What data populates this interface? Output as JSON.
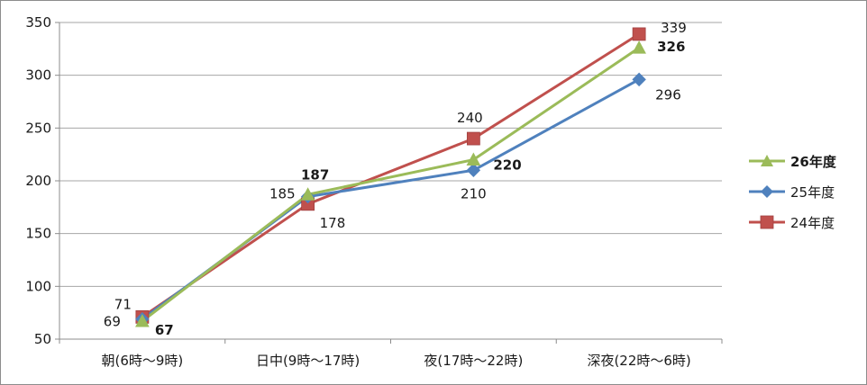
{
  "chart_data": {
    "type": "line",
    "categories": [
      "朝(6時～9時)",
      "日中(9時～17時)",
      "夜(17時～22時)",
      "深夜(22時～6時)"
    ],
    "ylim": [
      50,
      350
    ],
    "yticks": [
      50,
      100,
      150,
      200,
      250,
      300,
      350
    ],
    "grid": true,
    "legend_position": "right",
    "series": [
      {
        "name": "26年度",
        "values": [
          67,
          187,
          220,
          326
        ],
        "color": "#9bbb59",
        "marker": "triangle",
        "bold_labels": true
      },
      {
        "name": "25年度",
        "values": [
          69,
          185,
          210,
          296
        ],
        "color": "#4f81bd",
        "marker": "diamond",
        "bold_labels": false
      },
      {
        "name": "24年度",
        "values": [
          71,
          178,
          240,
          339
        ],
        "color": "#c0504d",
        "marker": "square",
        "bold_labels": false
      }
    ]
  }
}
